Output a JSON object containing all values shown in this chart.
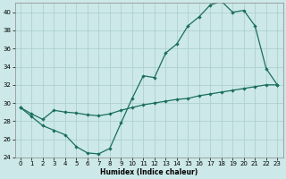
{
  "xlabel": "Humidex (Indice chaleur)",
  "bg_color": "#cce8e8",
  "grid_color": "#aacccc",
  "line_color": "#1a6e5e",
  "x_upper": [
    0,
    1,
    2,
    3,
    4,
    5,
    6,
    7,
    8,
    9,
    10,
    11,
    12,
    13,
    14,
    15,
    16,
    17,
    18,
    19,
    20,
    21,
    22,
    23
  ],
  "y_upper": [
    29.5,
    28.5,
    27.5,
    27.0,
    26.5,
    25.2,
    24.5,
    24.4,
    25.0,
    27.8,
    30.5,
    33.0,
    32.8,
    35.5,
    36.5,
    38.5,
    39.5,
    40.8,
    41.2,
    40.0,
    40.2,
    38.5,
    33.8,
    32.0
  ],
  "x_lower": [
    0,
    1,
    2,
    3,
    4,
    5,
    6,
    7,
    8,
    9,
    10,
    11,
    12,
    13,
    14,
    15,
    16,
    17,
    18,
    19,
    20,
    21,
    22,
    23
  ],
  "y_lower": [
    29.5,
    28.8,
    28.2,
    29.2,
    29.0,
    28.9,
    28.7,
    28.6,
    28.8,
    29.2,
    29.5,
    29.8,
    30.0,
    30.2,
    30.4,
    30.5,
    30.8,
    31.0,
    31.2,
    31.4,
    31.6,
    31.8,
    32.0,
    32.0
  ],
  "ylim": [
    24,
    41
  ],
  "xlim_min": -0.5,
  "xlim_max": 23.5,
  "yticks": [
    24,
    26,
    28,
    30,
    32,
    34,
    36,
    38,
    40
  ],
  "xticks": [
    0,
    1,
    2,
    3,
    4,
    5,
    6,
    7,
    8,
    9,
    10,
    11,
    12,
    13,
    14,
    15,
    16,
    17,
    18,
    19,
    20,
    21,
    22,
    23
  ],
  "xtick_labels": [
    "0",
    "1",
    "2",
    "3",
    "4",
    "5",
    "6",
    "7",
    "8",
    "9",
    "10",
    "11",
    "12",
    "13",
    "14",
    "15",
    "16",
    "17",
    "18",
    "19",
    "20",
    "21",
    "22",
    "23"
  ]
}
